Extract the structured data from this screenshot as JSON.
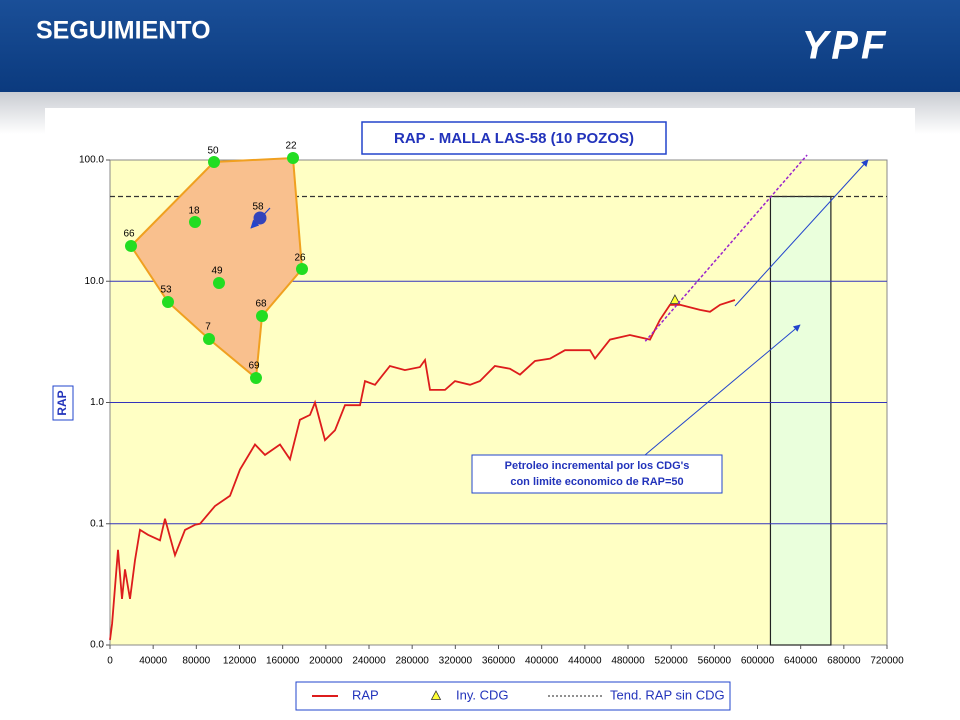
{
  "header": {
    "title": "SEGUIMIENTO",
    "logo": "YPF"
  },
  "well_map": {
    "wells": [
      "50",
      "22",
      "58",
      "18",
      "66",
      "26",
      "49",
      "53",
      "68",
      "7",
      "69"
    ]
  },
  "chart_data": {
    "type": "line",
    "title": "RAP - MALLA LAS-58 (10 POZOS)",
    "y_label": "RAP",
    "ylog": true,
    "xlim": [
      0,
      720000
    ],
    "xticks": [
      0,
      40000,
      80000,
      120000,
      160000,
      200000,
      240000,
      280000,
      320000,
      360000,
      400000,
      440000,
      480000,
      520000,
      560000,
      600000,
      640000,
      680000,
      720000
    ],
    "ylim": [
      0.01,
      100
    ],
    "yticks": [
      {
        "value": 0.01,
        "label": "0.0"
      },
      {
        "value": 0.1,
        "label": "0.1"
      },
      {
        "value": 1,
        "label": "1.0"
      },
      {
        "value": 10,
        "label": "10.0"
      },
      {
        "value": 100,
        "label": "100.0"
      }
    ],
    "grid": true,
    "reference_line": {
      "value": 50,
      "color": "#333333"
    },
    "highlight_x": [
      612000,
      668000
    ],
    "annotation": [
      "Petroleo incremental por los CDG's",
      "con limite economico de RAP=50"
    ],
    "series": [
      {
        "name": "RAP",
        "color": "#dd1c1c",
        "x": [
          0,
          1900,
          7400,
          11100,
          13900,
          18500,
          23200,
          27800,
          35200,
          46300,
          51000,
          60200,
          69500,
          78800,
          83400,
          97300,
          111200,
          120500,
          134400,
          143600,
          157500,
          166800,
          176000,
          185300,
          190000,
          199200,
          208500,
          217800,
          231700,
          236300,
          245600,
          259400,
          273300,
          287200,
          291900,
          296500,
          310400,
          319700,
          333600,
          342800,
          356700,
          370600,
          379900,
          393800,
          407700,
          421600,
          435500,
          444800,
          449400,
          463300,
          481800,
          500400,
          509600,
          518900,
          528200,
          546700,
          556000,
          565300,
          579100
        ],
        "values": [
          0.011,
          0.015,
          0.061,
          0.024,
          0.042,
          0.024,
          0.05,
          0.089,
          0.081,
          0.073,
          0.11,
          0.055,
          0.089,
          0.098,
          0.1,
          0.14,
          0.17,
          0.28,
          0.45,
          0.37,
          0.45,
          0.34,
          0.72,
          0.79,
          1.0,
          0.49,
          0.59,
          0.95,
          0.95,
          1.5,
          1.4,
          2.0,
          1.85,
          1.96,
          2.24,
          1.27,
          1.27,
          1.5,
          1.4,
          1.5,
          2.0,
          1.9,
          1.7,
          2.2,
          2.3,
          2.7,
          2.7,
          2.7,
          2.3,
          3.3,
          3.6,
          3.3,
          4.8,
          6.4,
          6.4,
          5.8,
          5.6,
          6.4,
          7.0
        ]
      },
      {
        "name": "Iny. CDG",
        "color": "#ffff33",
        "marker": "triangle",
        "x": [
          523500
        ],
        "values": [
          7.0
        ]
      },
      {
        "name": "Tend. RAP sin CDG",
        "color": "#9922cc",
        "dashed": true,
        "x": [
          496000,
          646000
        ],
        "values": [
          3.2,
          110
        ]
      }
    ]
  }
}
